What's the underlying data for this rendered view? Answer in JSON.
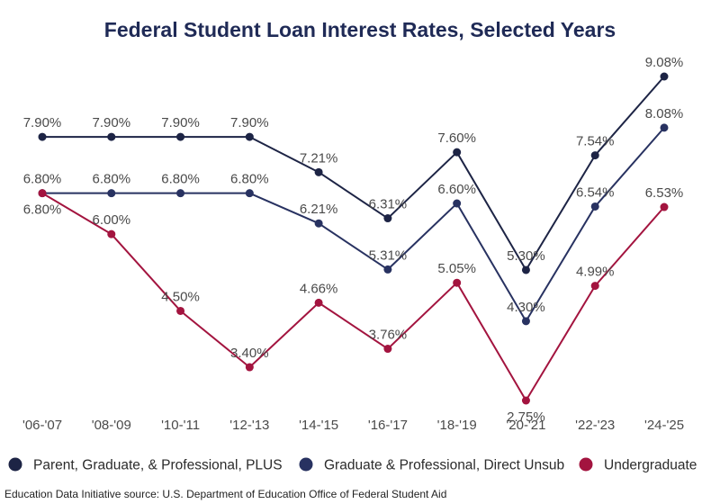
{
  "chart_data": {
    "type": "line",
    "title": "Federal Student Loan Interest Rates, Selected Years",
    "xlabel": "",
    "ylabel": "",
    "categories": [
      "'06-'07",
      "'08-'09",
      "'10-'11",
      "'12-'13",
      "'14-'15",
      "'16-'17",
      "'18-'19",
      "'20-'21",
      "'22-'23",
      "'24-'25"
    ],
    "ylim": [
      2.0,
      9.5
    ],
    "grid": false,
    "legend_position": "bottom",
    "series": [
      {
        "name": "Parent, Graduate, & Professional, PLUS",
        "color": "#1d2445",
        "values": [
          7.9,
          7.9,
          7.9,
          7.9,
          7.21,
          6.31,
          7.6,
          5.3,
          7.54,
          9.08
        ],
        "labels": [
          "7.90%",
          "7.90%",
          "7.90%",
          "7.90%",
          "7.21%",
          "6.31%",
          "7.60%",
          "5.30%",
          "7.54%",
          "9.08%"
        ]
      },
      {
        "name": "Graduate & Professional, Direct Unsub",
        "color": "#283261",
        "values": [
          6.8,
          6.8,
          6.8,
          6.8,
          6.21,
          5.31,
          6.6,
          4.3,
          6.54,
          8.08
        ],
        "labels": [
          "6.80%",
          "6.80%",
          "6.80%",
          "6.80%",
          "6.21%",
          "5.31%",
          "6.60%",
          "4.30%",
          "6.54%",
          "8.08%"
        ]
      },
      {
        "name": "Undergraduate",
        "color": "#a3143f",
        "values": [
          6.8,
          6.0,
          4.5,
          3.4,
          4.66,
          3.76,
          5.05,
          2.75,
          4.99,
          6.53
        ],
        "labels": [
          "6.80%",
          "6.00%",
          "4.50%",
          "3.40%",
          "4.66%",
          "3.76%",
          "5.05%",
          "2.75%",
          "4.99%",
          "6.53%"
        ]
      }
    ],
    "source": "Education Data Initiative source: U.S. Department of Education Office of Federal Student Aid"
  }
}
